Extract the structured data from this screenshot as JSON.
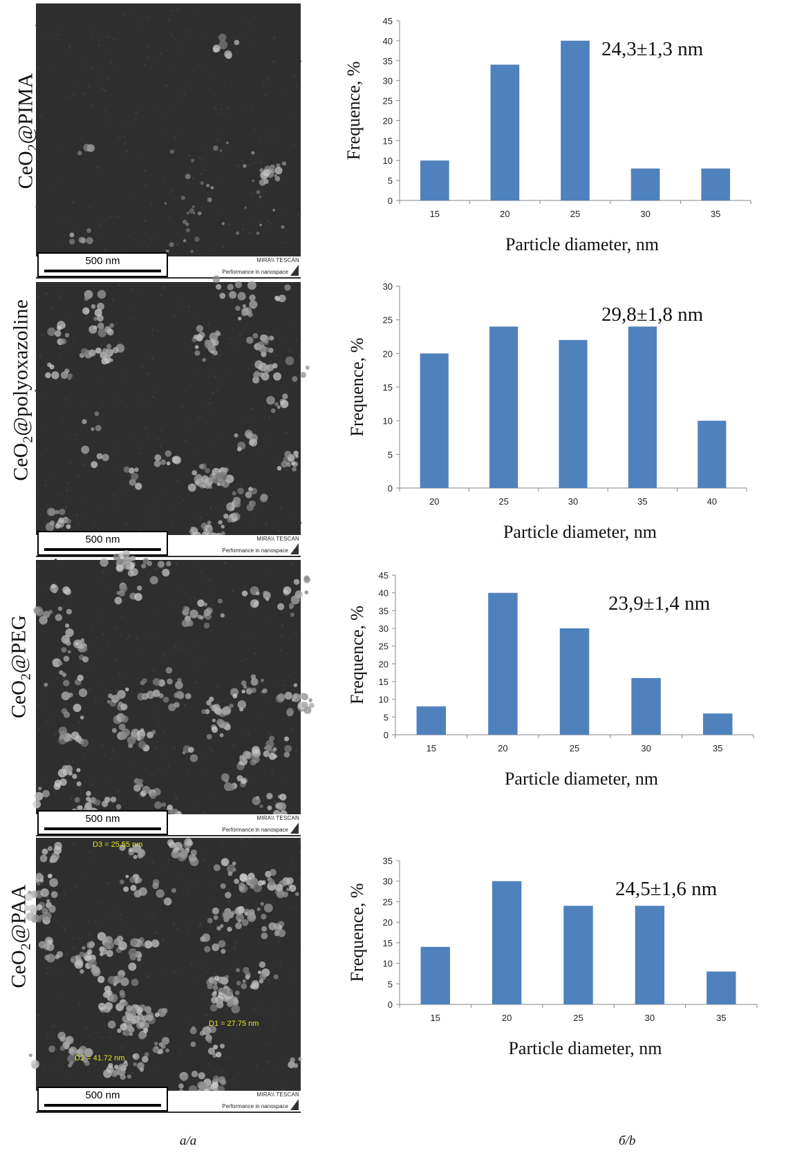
{
  "panels": [
    {
      "label_main": "CeO",
      "label_sub": "2",
      "label_rest": "@PIMA",
      "scale": "500 nm",
      "mira": "MIRA\\\\ TESCAN",
      "perf": "Performance in nanospace"
    },
    {
      "label_main": "CeO",
      "label_sub": "2",
      "label_rest": "@polyoxazoline",
      "scale": "500 nm",
      "mira": "MIRA\\\\ TESCAN",
      "perf": "Performance in nanospace"
    },
    {
      "label_main": "CeO",
      "label_sub": "2",
      "label_rest": "@PEG",
      "scale": "500 nm",
      "mira": "MIRA\\\\ TESCAN",
      "perf": "Performance in nanospace"
    },
    {
      "label_main": "CeO",
      "label_sub": "2",
      "label_rest": "@PAA",
      "scale": "500 nm",
      "mira": "MIRA\\\\ TESCAN",
      "perf": "Performance in nanospace",
      "measurements": [
        "D3 = 25.55 nm",
        "D1 = 27.75 nm",
        "D2 = 41.72 nm"
      ]
    }
  ],
  "captions": {
    "a": "a/a",
    "b": "б/b"
  },
  "colors": {
    "bar": "#4f81bd",
    "sem_background": "#2e2e2e",
    "sem_particle": "#9a9a9a"
  },
  "chart_data": [
    {
      "type": "bar",
      "categories": [
        "15",
        "20",
        "25",
        "30",
        "35"
      ],
      "values": [
        10,
        34,
        40,
        8,
        8
      ],
      "title": "",
      "annotation": "24,3±1,3 nm",
      "xlabel": "Particle diameter, nm",
      "ylabel": "Frequence, %",
      "ylim": [
        0,
        45
      ],
      "yticks": [
        0,
        5,
        10,
        15,
        20,
        25,
        30,
        35,
        40,
        45
      ],
      "grid": false
    },
    {
      "type": "bar",
      "categories": [
        "20",
        "25",
        "30",
        "35",
        "40"
      ],
      "values": [
        20,
        24,
        22,
        24,
        10
      ],
      "title": "",
      "annotation": "29,8±1,8 nm",
      "xlabel": "Particle diameter, nm",
      "ylabel": "Frequence, %",
      "ylim": [
        0,
        30
      ],
      "yticks": [
        0,
        5,
        10,
        15,
        20,
        25,
        30
      ],
      "grid": false
    },
    {
      "type": "bar",
      "categories": [
        "15",
        "20",
        "25",
        "30",
        "35"
      ],
      "values": [
        8,
        40,
        30,
        16,
        6
      ],
      "title": "",
      "annotation": "23,9±1,4 nm",
      "xlabel": "Particle diameter, nm",
      "ylabel": "Frequence, %",
      "ylim": [
        0,
        45
      ],
      "yticks": [
        0,
        5,
        10,
        15,
        20,
        25,
        30,
        35,
        40,
        45
      ],
      "grid": false
    },
    {
      "type": "bar",
      "categories": [
        "15",
        "20",
        "25",
        "30",
        "35"
      ],
      "values": [
        14,
        30,
        24,
        24,
        8
      ],
      "title": "",
      "annotation": "24,5±1,6 nm",
      "xlabel": "Particle diameter, nm",
      "ylabel": "Frequence, %",
      "ylim": [
        0,
        35
      ],
      "yticks": [
        0,
        5,
        10,
        15,
        20,
        25,
        30,
        35
      ],
      "grid": false
    }
  ]
}
